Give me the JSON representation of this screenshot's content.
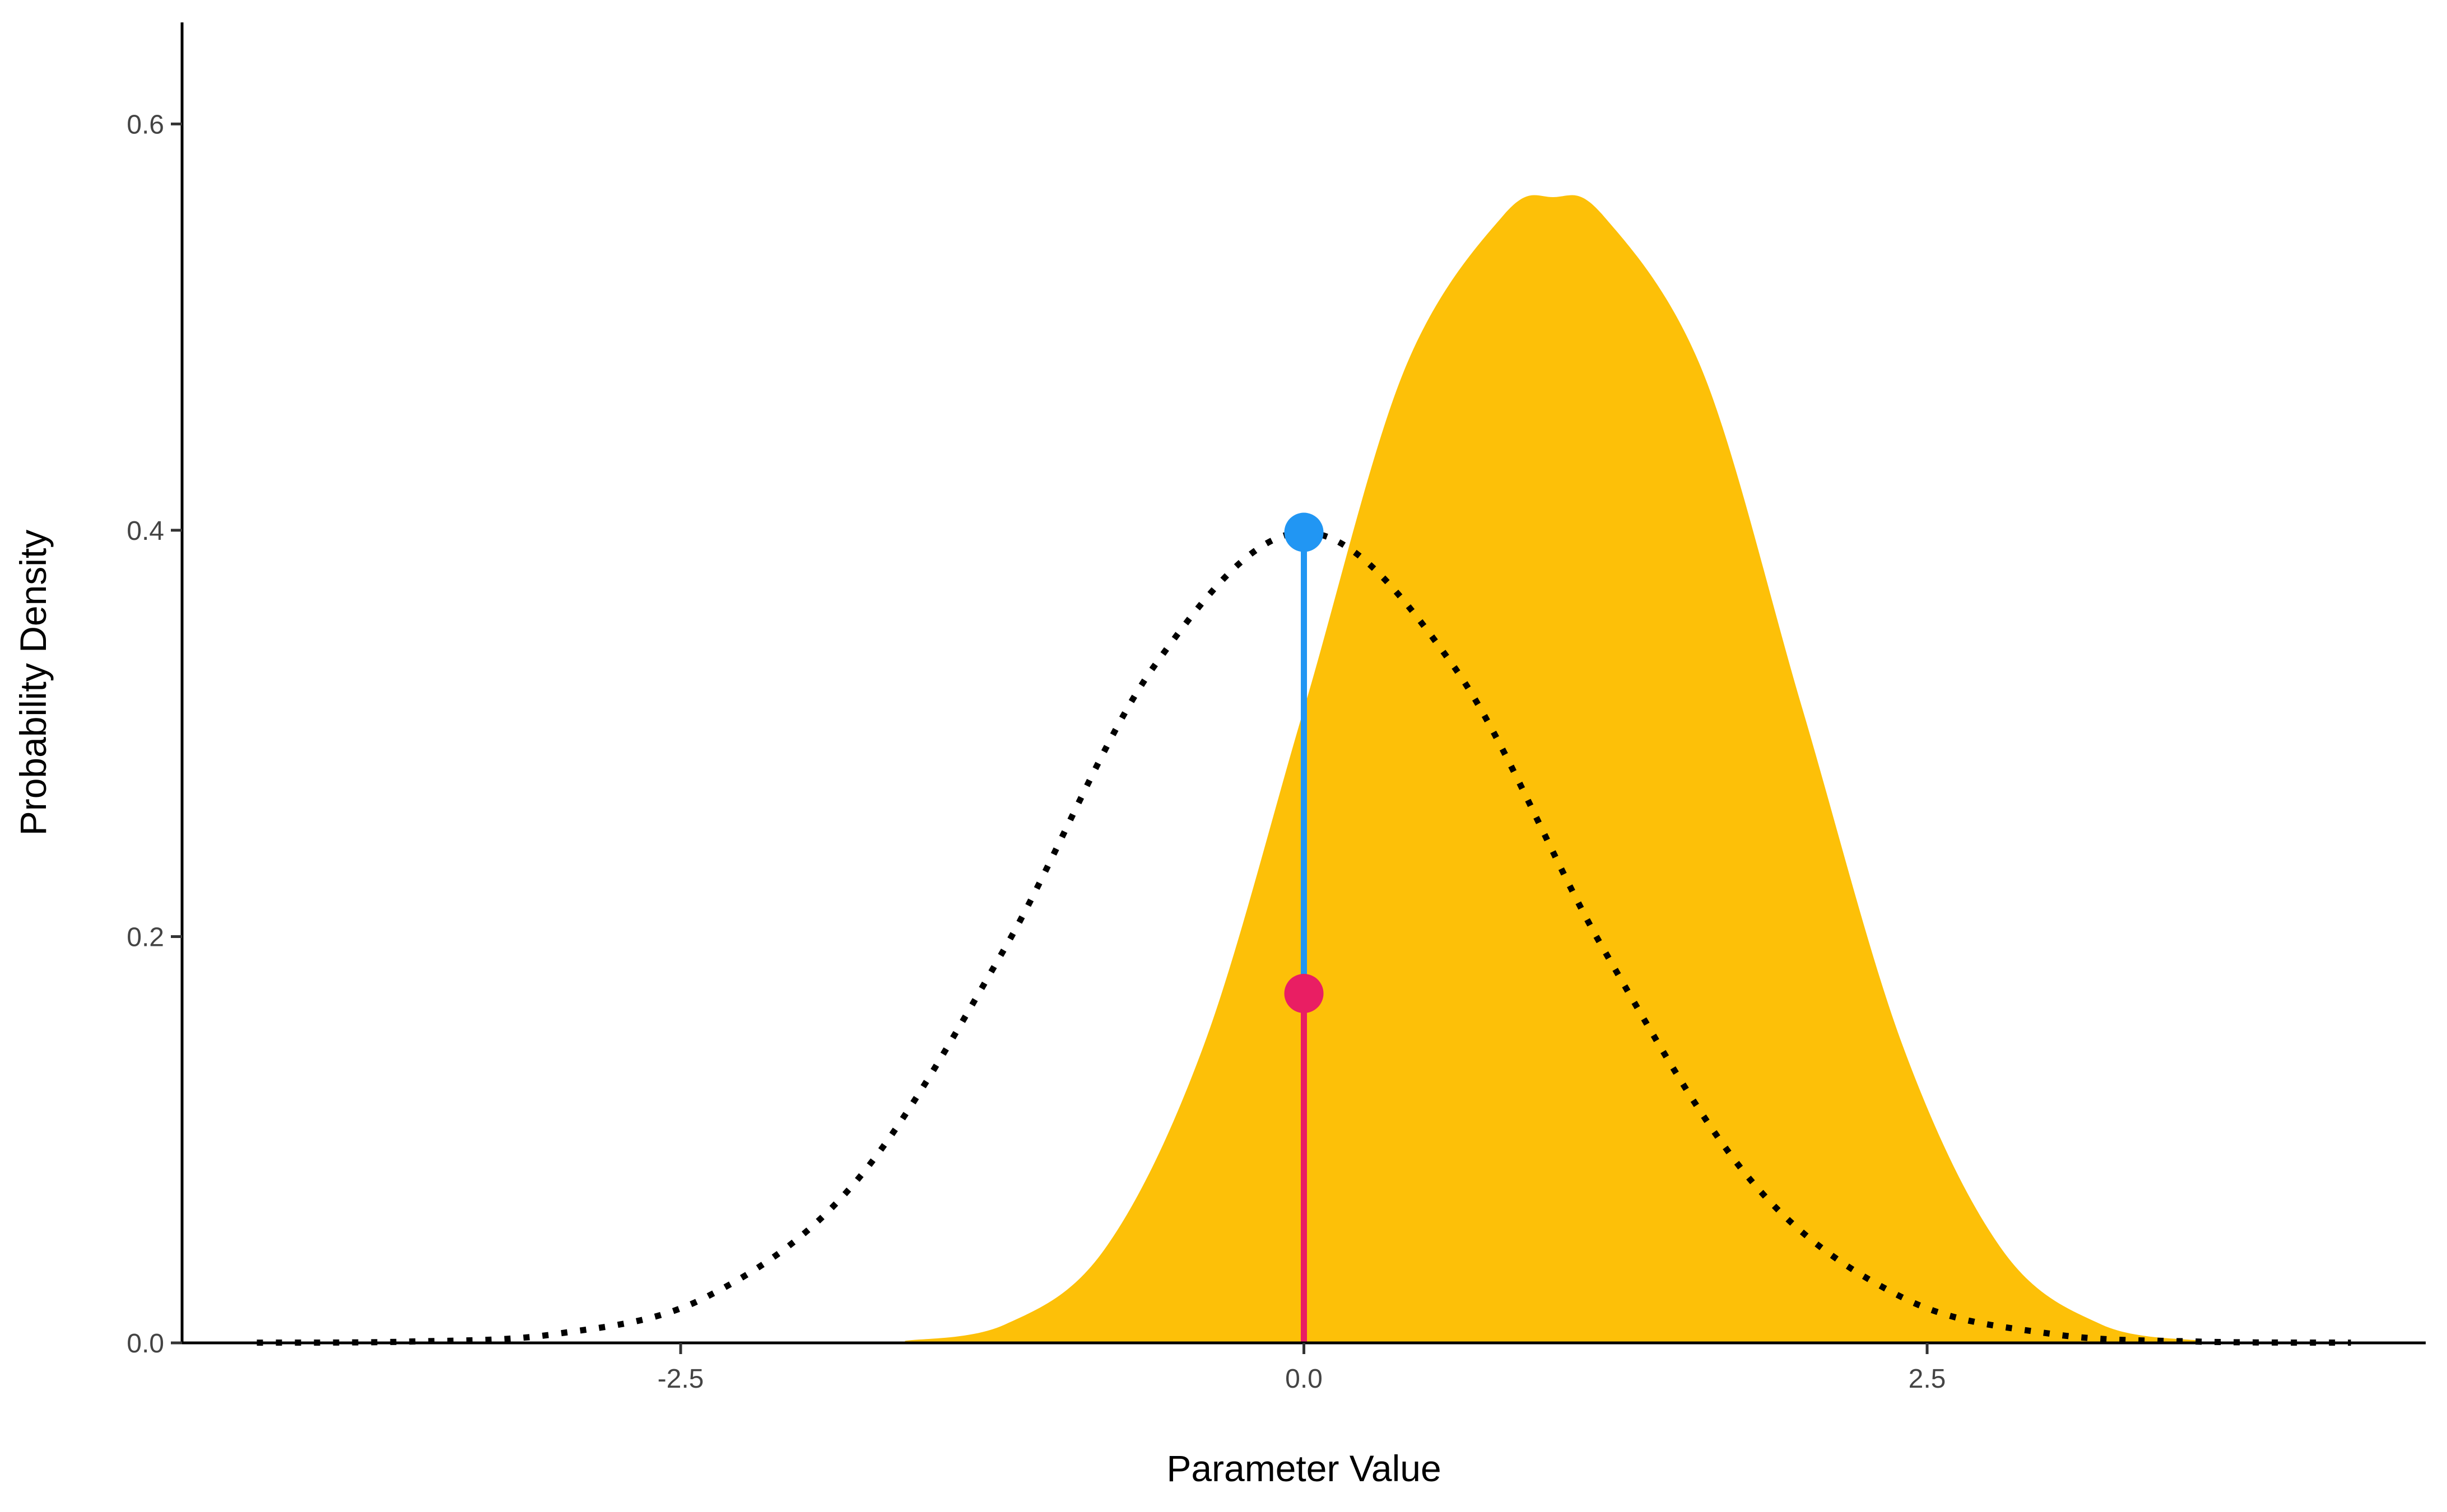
{
  "chart_data": {
    "type": "area",
    "title": "",
    "xlabel": "Parameter Value",
    "ylabel": "Probability Density",
    "xlim": [
      -4.5,
      4.5
    ],
    "ylim": [
      0,
      0.65
    ],
    "x_ticks": [
      -2.5,
      0.0,
      2.5
    ],
    "x_tick_labels": [
      "-2.5",
      "0.0",
      "2.5"
    ],
    "y_ticks": [
      0.0,
      0.2,
      0.4,
      0.6
    ],
    "y_tick_labels": [
      "0.0",
      "0.2",
      "0.4",
      "0.6"
    ],
    "grid": false,
    "legend": "none",
    "series": [
      {
        "style": "filled-area",
        "color": "#FDC008",
        "x": [
          -1.6,
          -1.2,
          -0.8,
          -0.4,
          0.0,
          0.4,
          0.8,
          1.0,
          1.2,
          1.6,
          2.0,
          2.4,
          2.8,
          3.2,
          3.6
        ],
        "values": [
          0.001,
          0.009,
          0.046,
          0.147,
          0.312,
          0.478,
          0.555,
          0.564,
          0.555,
          0.478,
          0.312,
          0.147,
          0.046,
          0.009,
          0.001
        ]
      },
      {
        "style": "dotted-line",
        "color": "#000000",
        "x": [
          -4.2,
          -3.6,
          -3.0,
          -2.4,
          -1.8,
          -1.2,
          -0.6,
          0.0,
          0.6,
          1.2,
          1.8,
          2.4,
          3.0,
          3.6,
          4.2
        ],
        "values": [
          0.0001,
          0.0006,
          0.0044,
          0.0224,
          0.079,
          0.1942,
          0.3332,
          0.399,
          0.3332,
          0.1942,
          0.079,
          0.0224,
          0.0044,
          0.0006,
          0.0001
        ]
      },
      {
        "style": "segment-with-point",
        "color": "#2196F3",
        "x": [
          0.0
        ],
        "values": [
          0.399
        ]
      },
      {
        "style": "segment-with-point",
        "color": "#E91E63",
        "x": [
          0.0
        ],
        "values": [
          0.172
        ]
      }
    ]
  }
}
